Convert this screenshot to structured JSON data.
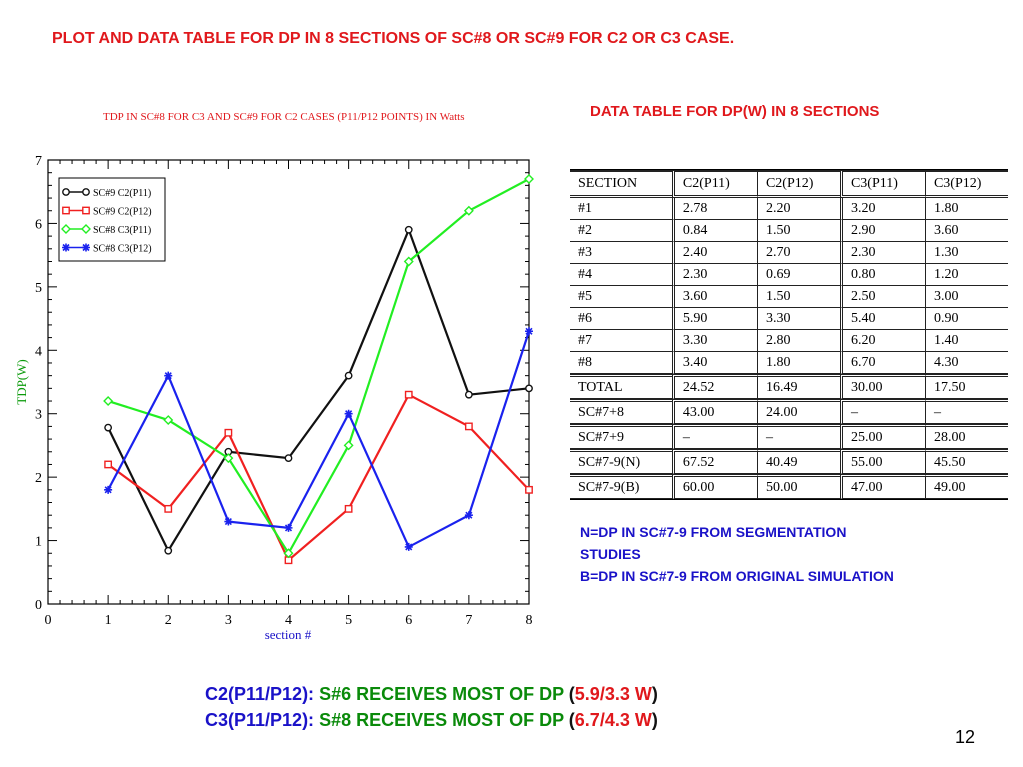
{
  "slide_title": "PLOT AND DATA TABLE FOR DP IN 8 SECTIONS OF SC#8 OR SC#9  FOR C2 OR C3 CASE.",
  "table_title": "DATA TABLE FOR DP(W) IN 8 SECTIONS",
  "chart_data": {
    "type": "line",
    "title": "TDP IN SC#8 FOR C3 AND SC#9 FOR C2 CASES  (P11/P12 POINTS) IN Watts",
    "xlabel": "section #",
    "ylabel": "TDP(W)",
    "x": [
      1,
      2,
      3,
      4,
      5,
      6,
      7,
      8
    ],
    "xlim": [
      0,
      8
    ],
    "ylim": [
      0,
      7
    ],
    "xticks": [
      "0",
      "1",
      "2",
      "3",
      "4",
      "5",
      "6",
      "7",
      "8"
    ],
    "yticks": [
      "0",
      "1",
      "2",
      "3",
      "4",
      "5",
      "6",
      "7"
    ],
    "grid": false,
    "legend_position": "top-left",
    "series": [
      {
        "name": "SC#9 C2(P11)",
        "color": "#111111",
        "marker": "circle",
        "values": [
          2.78,
          0.84,
          2.4,
          2.3,
          3.6,
          5.9,
          3.3,
          3.4
        ]
      },
      {
        "name": "SC#9 C2(P12)",
        "color": "#f02020",
        "marker": "square",
        "values": [
          2.2,
          1.5,
          2.7,
          0.69,
          1.5,
          3.3,
          2.8,
          1.8
        ]
      },
      {
        "name": "SC#8 C3(P11)",
        "color": "#22ee22",
        "marker": "diamond",
        "values": [
          3.2,
          2.9,
          2.3,
          0.8,
          2.5,
          5.4,
          6.2,
          6.7
        ]
      },
      {
        "name": "SC#8 C3(P12)",
        "color": "#1a22ee",
        "marker": "star",
        "values": [
          1.8,
          3.6,
          1.3,
          1.2,
          3.0,
          0.9,
          1.4,
          4.3
        ]
      }
    ]
  },
  "table": {
    "headers": [
      "SECTION",
      "C2(P11)",
      "C2(P12)",
      "C3(P11)",
      "C3(P12)"
    ],
    "rows": [
      [
        "#1",
        "2.78",
        "2.20",
        "3.20",
        "1.80"
      ],
      [
        "#2",
        "0.84",
        "1.50",
        "2.90",
        "3.60"
      ],
      [
        "#3",
        "2.40",
        "2.70",
        "2.30",
        "1.30"
      ],
      [
        "#4",
        "2.30",
        "0.69",
        "0.80",
        "1.20"
      ],
      [
        "#5",
        "3.60",
        "1.50",
        "2.50",
        "3.00"
      ],
      [
        "#6",
        "5.90",
        "3.30",
        "5.40",
        "0.90"
      ],
      [
        "#7",
        "3.30",
        "2.80",
        "6.20",
        "1.40"
      ],
      [
        "#8",
        "3.40",
        "1.80",
        "6.70",
        "4.30"
      ],
      [
        "TOTAL",
        "24.52",
        "16.49",
        "30.00",
        "17.50"
      ],
      [
        "SC#7+8",
        "43.00",
        "24.00",
        "–",
        "–"
      ],
      [
        "SC#7+9",
        "–",
        "–",
        "25.00",
        "28.00"
      ],
      [
        "SC#7-9(N)",
        "67.52",
        "40.49",
        "55.00",
        "45.50"
      ],
      [
        "SC#7-9(B)",
        "60.00",
        "50.00",
        "47.00",
        "49.00"
      ]
    ]
  },
  "notes": {
    "line1": "N=DP IN SC#7-9 FROM SEGMENTATION",
    "line2": "STUDIES",
    "line3": "B=DP IN SC#7-9 FROM  ORIGINAL SIMULATION"
  },
  "summary": [
    {
      "label": "C2(P11/P12):",
      "text": " S#6 RECEIVES MOST OF DP ",
      "open": "(",
      "value": "5.9/3.3 W",
      "close": ")"
    },
    {
      "label": "C3(P11/P12):",
      "text": " S#8 RECEIVES MOST OF DP ",
      "open": "(",
      "value": "6.7/4.3 W",
      "close": ")"
    }
  ],
  "page_number": "12"
}
